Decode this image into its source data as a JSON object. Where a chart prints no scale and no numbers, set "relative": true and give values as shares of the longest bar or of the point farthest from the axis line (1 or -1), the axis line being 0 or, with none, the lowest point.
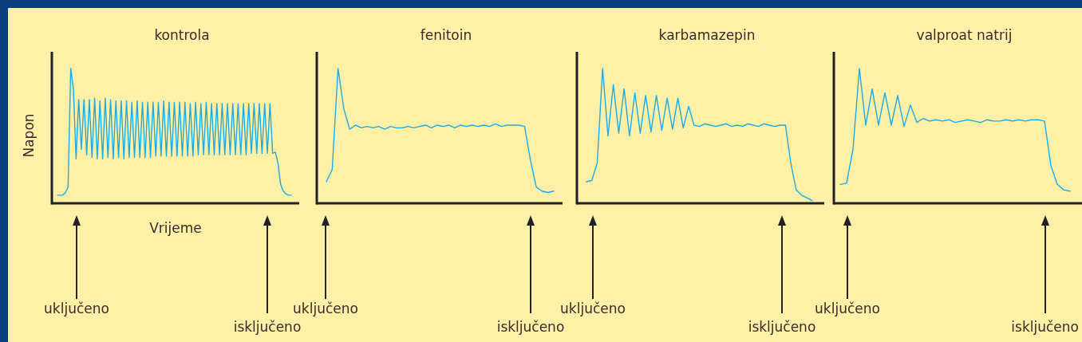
{
  "chart_data": [
    {
      "type": "line",
      "title": "kontrola",
      "xlabel": "Vrijeme",
      "ylabel": "Napon",
      "relative": true,
      "annotations": [
        "uključeno",
        "isključeno"
      ],
      "categories": [
        null,
        null,
        null,
        null,
        null,
        null,
        null,
        null,
        null,
        null,
        null,
        null,
        null,
        null,
        null,
        null,
        null,
        null,
        null,
        null,
        null,
        null,
        null,
        null,
        null,
        null,
        null,
        null,
        null,
        null,
        null,
        null,
        null,
        null,
        null,
        null,
        null,
        null,
        null,
        null,
        null,
        null,
        null,
        null,
        null,
        null,
        null,
        null,
        null,
        null,
        null,
        null,
        null,
        null,
        null,
        null,
        null,
        null,
        null,
        null,
        null,
        null,
        null,
        null,
        null,
        null,
        null,
        null,
        null,
        null,
        null,
        null,
        null,
        null,
        null,
        null,
        null,
        null,
        null,
        null,
        null,
        null,
        null,
        null,
        null,
        null,
        null,
        null,
        null
      ],
      "series": [
        {
          "color": "#1aabe8",
          "values": [
            0.06,
            0.06,
            0.06,
            0.08,
            0.12,
            1,
            0.85,
            0.33,
            0.77,
            0.4,
            0.77,
            0.36,
            0.77,
            0.34,
            0.78,
            0.33,
            0.76,
            0.33,
            0.78,
            0.34,
            0.77,
            0.33,
            0.76,
            0.34,
            0.76,
            0.33,
            0.76,
            0.34,
            0.75,
            0.34,
            0.76,
            0.34,
            0.75,
            0.34,
            0.75,
            0.34,
            0.75,
            0.35,
            0.75,
            0.35,
            0.76,
            0.35,
            0.75,
            0.35,
            0.75,
            0.35,
            0.75,
            0.35,
            0.75,
            0.35,
            0.74,
            0.35,
            0.75,
            0.36,
            0.74,
            0.36,
            0.75,
            0.36,
            0.74,
            0.36,
            0.74,
            0.36,
            0.74,
            0.36,
            0.74,
            0.36,
            0.74,
            0.36,
            0.74,
            0.36,
            0.74,
            0.36,
            0.74,
            0.37,
            0.74,
            0.37,
            0.74,
            0.37,
            0.74,
            0.37,
            0.74,
            0.37,
            0.38,
            0.3,
            0.14,
            0.09,
            0.07,
            0.06,
            0.06
          ]
        }
      ]
    },
    {
      "type": "line",
      "title": "fenitoin",
      "relative": true,
      "annotations": [
        "uključeno",
        "isključeno"
      ],
      "categories": [
        null,
        null,
        null,
        null,
        null,
        null,
        null,
        null,
        null,
        null,
        null,
        null,
        null,
        null,
        null,
        null,
        null,
        null,
        null,
        null,
        null,
        null,
        null,
        null,
        null,
        null,
        null,
        null,
        null,
        null,
        null,
        null,
        null,
        null,
        null,
        null,
        null,
        null,
        null,
        null
      ],
      "series": [
        {
          "color": "#1aabe8",
          "values": [
            0.16,
            0.25,
            1,
            0.7,
            0.55,
            0.58,
            0.56,
            0.57,
            0.56,
            0.57,
            0.55,
            0.57,
            0.56,
            0.56,
            0.57,
            0.56,
            0.57,
            0.58,
            0.56,
            0.58,
            0.57,
            0.58,
            0.56,
            0.58,
            0.57,
            0.58,
            0.57,
            0.58,
            0.57,
            0.59,
            0.57,
            0.58,
            0.58,
            0.58,
            0.57,
            0.32,
            0.12,
            0.09,
            0.08,
            0.09
          ]
        }
      ]
    },
    {
      "type": "line",
      "title": "karbamazepin",
      "relative": true,
      "annotations": [
        "uključeno",
        "isključeno"
      ],
      "categories": [
        null,
        null,
        null,
        null,
        null,
        null,
        null,
        null,
        null,
        null,
        null,
        null,
        null,
        null,
        null,
        null,
        null,
        null,
        null,
        null,
        null,
        null,
        null,
        null,
        null,
        null,
        null,
        null,
        null,
        null,
        null,
        null,
        null,
        null,
        null,
        null,
        null,
        null,
        null,
        null,
        null,
        null,
        null
      ],
      "series": [
        {
          "color": "#1aabe8",
          "values": [
            0.16,
            0.17,
            0.3,
            1,
            0.5,
            0.88,
            0.52,
            0.85,
            0.5,
            0.82,
            0.52,
            0.8,
            0.53,
            0.8,
            0.54,
            0.78,
            0.55,
            0.78,
            0.56,
            0.72,
            0.58,
            0.57,
            0.59,
            0.58,
            0.57,
            0.58,
            0.59,
            0.57,
            0.58,
            0.57,
            0.59,
            0.58,
            0.57,
            0.59,
            0.58,
            0.57,
            0.58,
            0.58,
            0.3,
            0.1,
            0.06,
            0.04,
            0.02
          ]
        }
      ]
    },
    {
      "type": "line",
      "title": "valproat natrij",
      "relative": true,
      "annotations": [
        "uključeno",
        "isključeno"
      ],
      "categories": [
        null,
        null,
        null,
        null,
        null,
        null,
        null,
        null,
        null,
        null,
        null,
        null,
        null,
        null,
        null,
        null,
        null,
        null,
        null,
        null,
        null,
        null,
        null,
        null,
        null,
        null,
        null,
        null,
        null,
        null,
        null,
        null,
        null,
        null,
        null,
        null,
        null
      ],
      "series": [
        {
          "color": "#1aabe8",
          "values": [
            0.14,
            0.15,
            0.4,
            1,
            0.58,
            0.85,
            0.58,
            0.82,
            0.58,
            0.8,
            0.57,
            0.73,
            0.6,
            0.63,
            0.61,
            0.62,
            0.61,
            0.62,
            0.6,
            0.61,
            0.62,
            0.61,
            0.6,
            0.62,
            0.61,
            0.61,
            0.62,
            0.61,
            0.62,
            0.61,
            0.62,
            0.62,
            0.61,
            0.28,
            0.14,
            0.1,
            0.09
          ]
        }
      ]
    }
  ]
}
